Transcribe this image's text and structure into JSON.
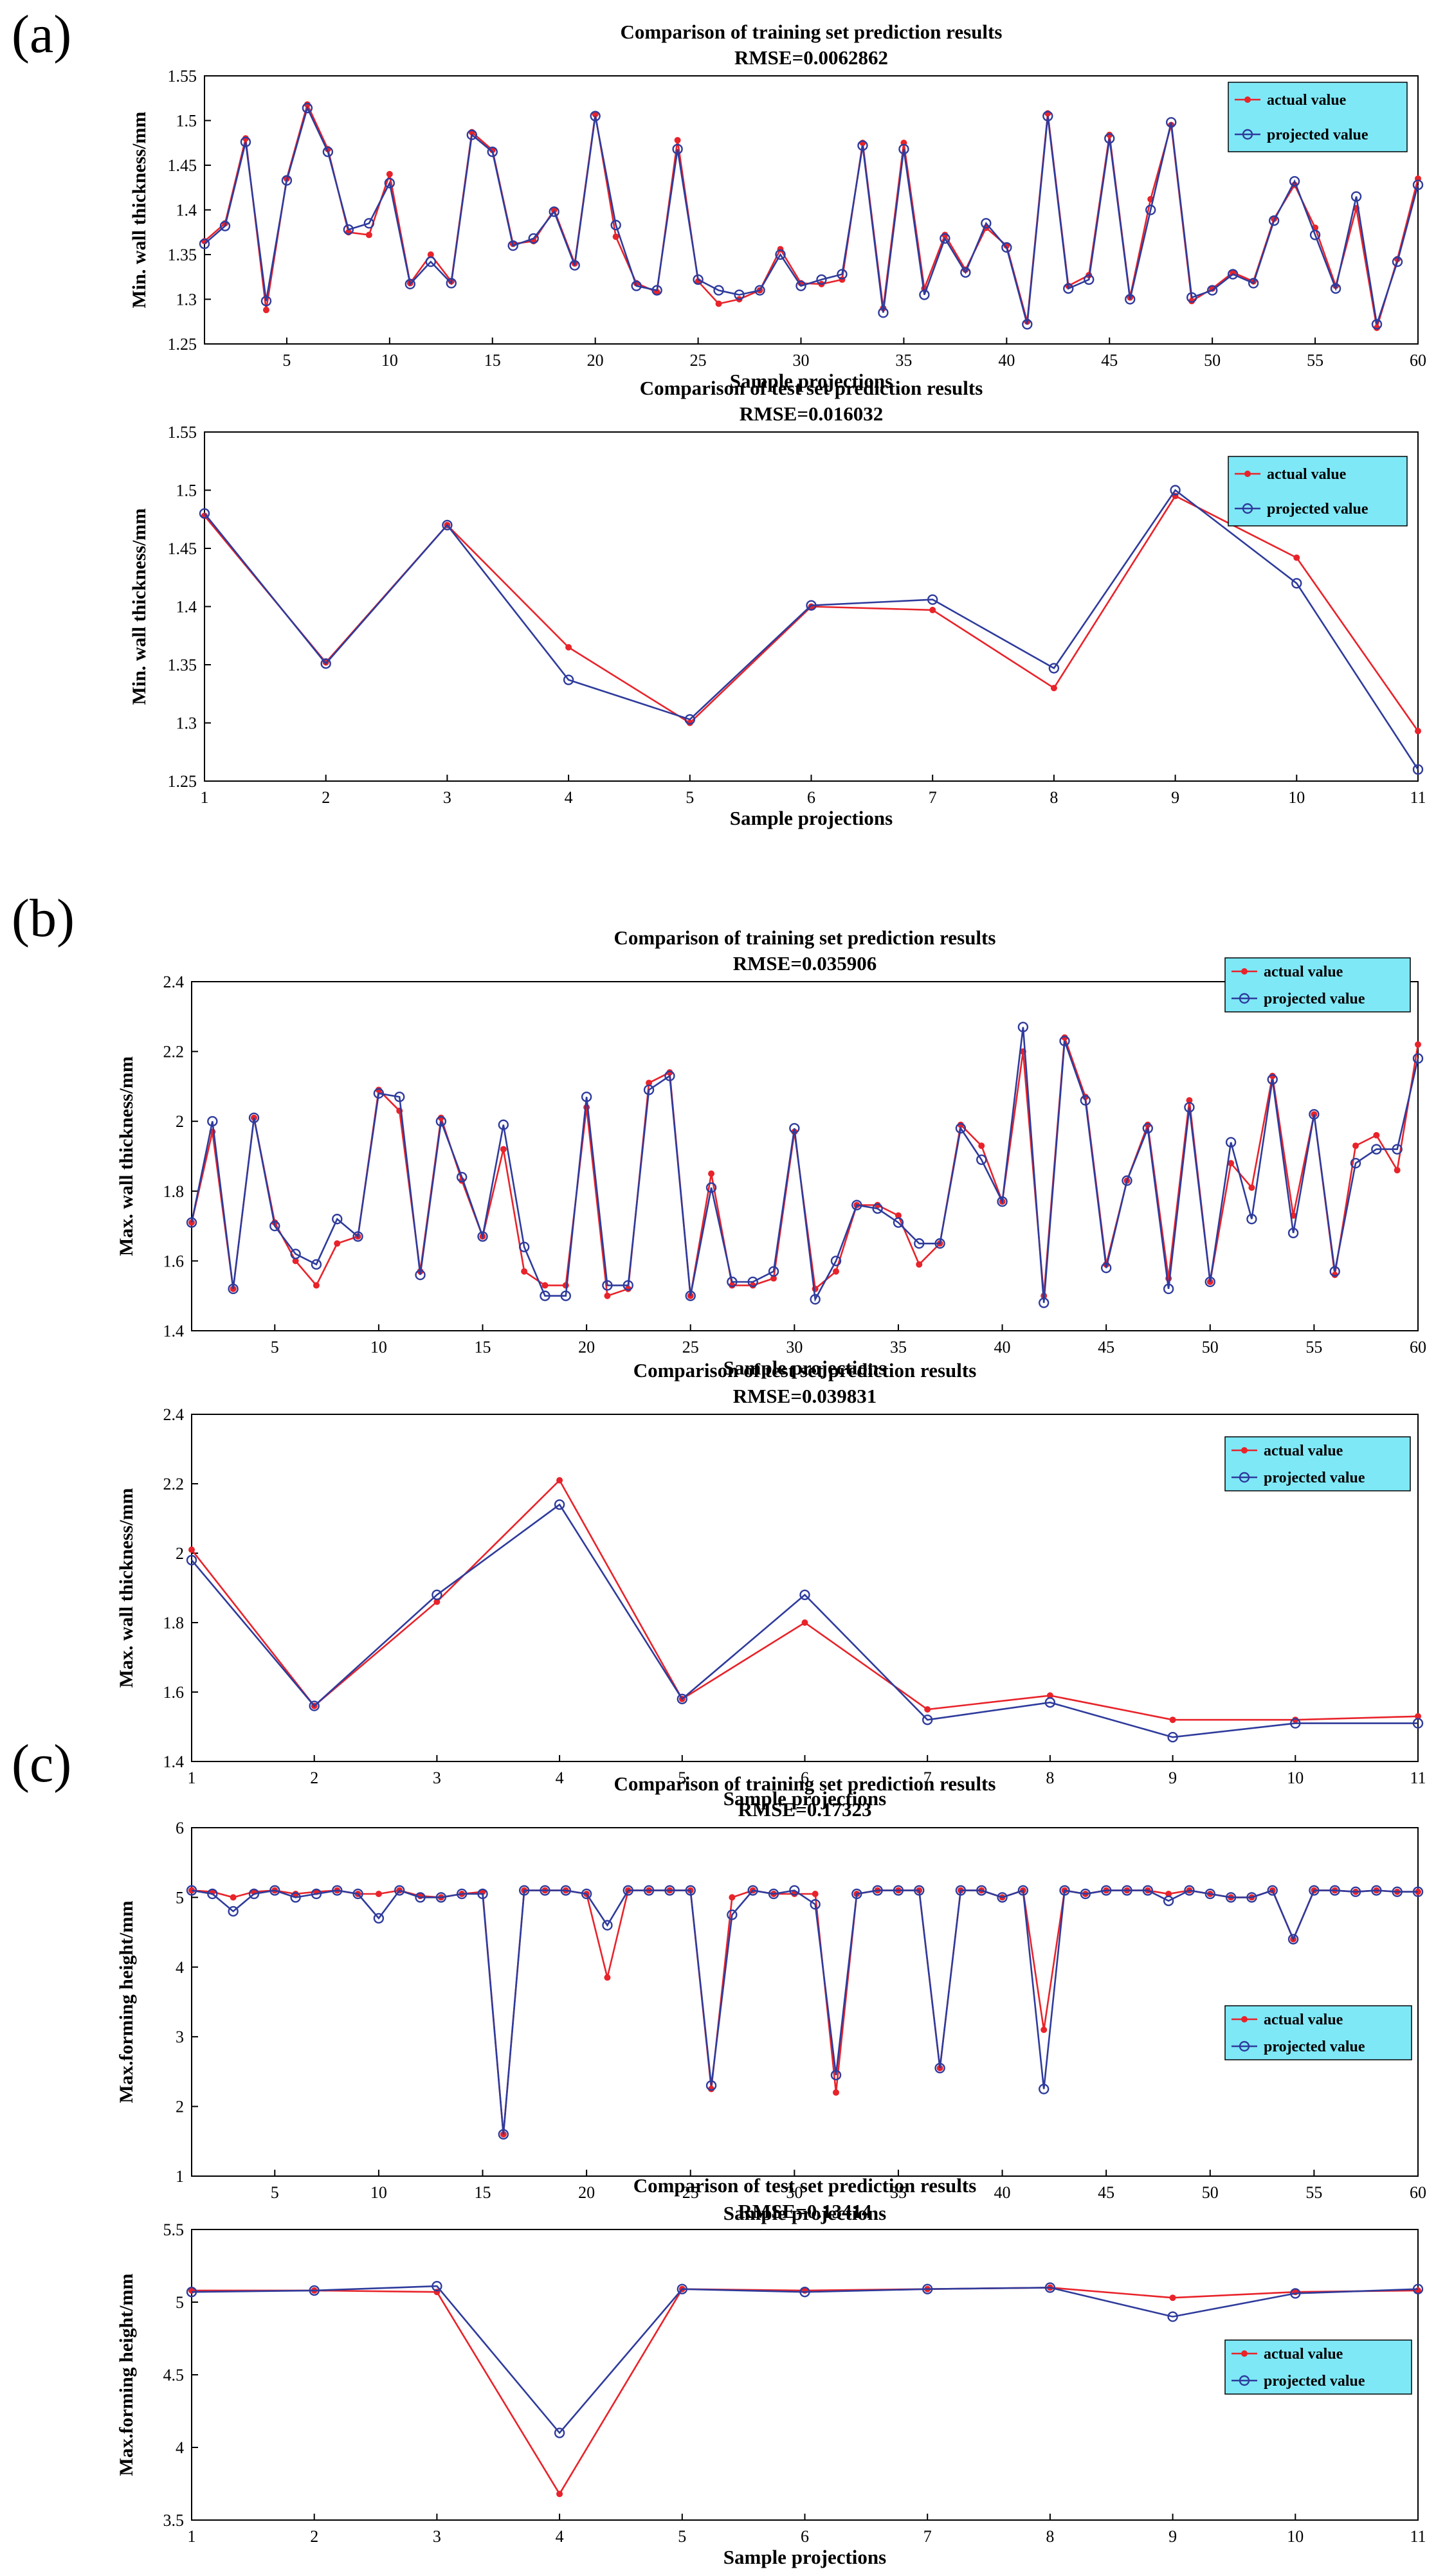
{
  "panel_labels": [
    "(a)",
    "(b)",
    "(c)"
  ],
  "colors": {
    "actual": "#e8232a",
    "projected": "#2e3b9c",
    "legend_bg": "#7ee8f7",
    "axis": "#000000"
  },
  "chart_data": [
    {
      "type": "line",
      "title": "Comparison of training set prediction results",
      "subtitle": "RMSE=0.0062862",
      "xlabel": "Sample projections",
      "ylabel": "Min. wall thickness/mm",
      "xlim": [
        1,
        60
      ],
      "ylim": [
        1.25,
        1.55
      ],
      "xticks": [
        5,
        10,
        15,
        20,
        25,
        30,
        35,
        40,
        45,
        50,
        55,
        60
      ],
      "yticks": [
        1.25,
        1.3,
        1.35,
        1.4,
        1.45,
        1.5,
        1.55
      ],
      "ytick_labels": [
        "1.25",
        "1.3",
        "1.35",
        "1.4",
        "1.45",
        "1.5",
        "1.55"
      ],
      "legend": [
        "actual value",
        "projected value"
      ],
      "legend_position": "top-right",
      "x": [
        1,
        2,
        3,
        4,
        5,
        6,
        7,
        8,
        9,
        10,
        11,
        12,
        13,
        14,
        15,
        16,
        17,
        18,
        19,
        20,
        21,
        22,
        23,
        24,
        25,
        26,
        27,
        28,
        29,
        30,
        31,
        32,
        33,
        34,
        35,
        36,
        37,
        38,
        39,
        40,
        41,
        42,
        43,
        44,
        45,
        46,
        47,
        48,
        49,
        50,
        51,
        52,
        53,
        54,
        55,
        56,
        57,
        58,
        59,
        60
      ],
      "series": [
        {
          "name": "actual value",
          "values": [
            1.365,
            1.385,
            1.48,
            1.288,
            1.435,
            1.518,
            1.468,
            1.375,
            1.372,
            1.44,
            1.318,
            1.35,
            1.32,
            1.487,
            1.467,
            1.362,
            1.365,
            1.4,
            1.34,
            1.507,
            1.37,
            1.318,
            1.308,
            1.478,
            1.32,
            1.295,
            1.3,
            1.31,
            1.356,
            1.318,
            1.317,
            1.322,
            1.475,
            1.29,
            1.475,
            1.312,
            1.372,
            1.333,
            1.38,
            1.36,
            1.275,
            1.508,
            1.315,
            1.327,
            1.484,
            1.302,
            1.412,
            1.495,
            1.298,
            1.312,
            1.33,
            1.32,
            1.39,
            1.428,
            1.38,
            1.315,
            1.402,
            1.268,
            1.345,
            1.435
          ]
        },
        {
          "name": "projected value",
          "values": [
            1.362,
            1.382,
            1.476,
            1.298,
            1.433,
            1.514,
            1.465,
            1.378,
            1.385,
            1.43,
            1.317,
            1.342,
            1.318,
            1.484,
            1.465,
            1.36,
            1.368,
            1.398,
            1.338,
            1.505,
            1.383,
            1.315,
            1.31,
            1.468,
            1.322,
            1.31,
            1.305,
            1.31,
            1.35,
            1.315,
            1.322,
            1.328,
            1.472,
            1.285,
            1.468,
            1.305,
            1.368,
            1.33,
            1.385,
            1.358,
            1.272,
            1.505,
            1.312,
            1.322,
            1.48,
            1.3,
            1.4,
            1.498,
            1.302,
            1.31,
            1.328,
            1.318,
            1.388,
            1.432,
            1.372,
            1.312,
            1.415,
            1.272,
            1.342,
            1.428
          ]
        }
      ]
    },
    {
      "type": "line",
      "title": "Comparison of test set prediction results",
      "subtitle": "RMSE=0.016032",
      "xlabel": "Sample projections",
      "ylabel": "Min. wall thickness/mm",
      "xlim": [
        1,
        11
      ],
      "ylim": [
        1.25,
        1.55
      ],
      "xticks": [
        1,
        2,
        3,
        4,
        5,
        6,
        7,
        8,
        9,
        10,
        11
      ],
      "yticks": [
        1.25,
        1.3,
        1.35,
        1.4,
        1.45,
        1.5,
        1.55
      ],
      "ytick_labels": [
        "1.25",
        "1.3",
        "1.35",
        "1.4",
        "1.45",
        "1.5",
        "1.55"
      ],
      "legend": [
        "actual value",
        "projected value"
      ],
      "legend_position": "top-right",
      "x": [
        1,
        2,
        3,
        4,
        5,
        6,
        7,
        8,
        9,
        10,
        11
      ],
      "series": [
        {
          "name": "actual value",
          "values": [
            1.478,
            1.352,
            1.47,
            1.365,
            1.3,
            1.4,
            1.397,
            1.33,
            1.495,
            1.442,
            1.293
          ]
        },
        {
          "name": "projected value",
          "values": [
            1.48,
            1.351,
            1.47,
            1.337,
            1.303,
            1.401,
            1.406,
            1.347,
            1.5,
            1.42,
            1.26
          ]
        }
      ]
    },
    {
      "type": "line",
      "title": "Comparison of training set prediction results",
      "subtitle": "RMSE=0.035906",
      "xlabel": "Sample projections",
      "ylabel": "Max. wall thickness/mm",
      "xlim": [
        1,
        60
      ],
      "ylim": [
        1.4,
        2.4
      ],
      "xticks": [
        5,
        10,
        15,
        20,
        25,
        30,
        35,
        40,
        45,
        50,
        55,
        60
      ],
      "yticks": [
        1.4,
        1.6,
        1.8,
        2.0,
        2.2,
        2.4
      ],
      "ytick_labels": [
        "1.4",
        "1.6",
        "1.8",
        "2",
        "2.2",
        "2.4"
      ],
      "legend": [
        "actual value",
        "projected value"
      ],
      "legend_position": "top-right",
      "x": [
        1,
        2,
        3,
        4,
        5,
        6,
        7,
        8,
        9,
        10,
        11,
        12,
        13,
        14,
        15,
        16,
        17,
        18,
        19,
        20,
        21,
        22,
        23,
        24,
        25,
        26,
        27,
        28,
        29,
        30,
        31,
        32,
        33,
        34,
        35,
        36,
        37,
        38,
        39,
        40,
        41,
        42,
        43,
        44,
        45,
        46,
        47,
        48,
        49,
        50,
        51,
        52,
        53,
        54,
        55,
        56,
        57,
        58,
        59,
        60
      ],
      "series": [
        {
          "name": "actual value",
          "values": [
            1.71,
            1.97,
            1.52,
            2.01,
            1.71,
            1.6,
            1.53,
            1.65,
            1.67,
            2.09,
            2.03,
            1.57,
            2.01,
            1.83,
            1.67,
            1.92,
            1.57,
            1.53,
            1.53,
            2.04,
            1.5,
            1.52,
            2.11,
            2.14,
            1.5,
            1.85,
            1.53,
            1.53,
            1.55,
            1.97,
            1.52,
            1.57,
            1.76,
            1.76,
            1.73,
            1.59,
            1.65,
            1.99,
            1.93,
            1.77,
            2.2,
            1.5,
            2.24,
            2.07,
            1.59,
            1.83,
            1.99,
            1.55,
            2.06,
            1.54,
            1.88,
            1.81,
            2.13,
            1.73,
            2.02,
            1.56,
            1.93,
            1.96,
            1.86,
            2.22
          ]
        },
        {
          "name": "projected value",
          "values": [
            1.71,
            2.0,
            1.52,
            2.01,
            1.7,
            1.62,
            1.59,
            1.72,
            1.67,
            2.08,
            2.07,
            1.56,
            2.0,
            1.84,
            1.67,
            1.99,
            1.64,
            1.5,
            1.5,
            2.07,
            1.53,
            1.53,
            2.09,
            2.13,
            1.5,
            1.81,
            1.54,
            1.54,
            1.57,
            1.98,
            1.49,
            1.6,
            1.76,
            1.75,
            1.71,
            1.65,
            1.65,
            1.98,
            1.89,
            1.77,
            2.27,
            1.48,
            2.23,
            2.06,
            1.58,
            1.83,
            1.98,
            1.52,
            2.04,
            1.54,
            1.94,
            1.72,
            2.12,
            1.68,
            2.02,
            1.57,
            1.88,
            1.92,
            1.92,
            2.18
          ]
        }
      ]
    },
    {
      "type": "line",
      "title": "Comparison of test set prediction results",
      "subtitle": "RMSE=0.039831",
      "xlabel": "Sample projections",
      "ylabel": "Max. wall thickness/mm",
      "xlim": [
        1,
        11
      ],
      "ylim": [
        1.4,
        2.4
      ],
      "xticks": [
        1,
        2,
        3,
        4,
        5,
        6,
        7,
        8,
        9,
        10,
        11
      ],
      "yticks": [
        1.4,
        1.6,
        1.8,
        2.0,
        2.2,
        2.4
      ],
      "ytick_labels": [
        "1.4",
        "1.6",
        "1.8",
        "2",
        "2.2",
        "2.4"
      ],
      "legend": [
        "actual value",
        "projected value"
      ],
      "legend_position": "top-right",
      "x": [
        1,
        2,
        3,
        4,
        5,
        6,
        7,
        8,
        9,
        10,
        11
      ],
      "series": [
        {
          "name": "actual value",
          "values": [
            2.01,
            1.56,
            1.86,
            2.21,
            1.58,
            1.8,
            1.55,
            1.59,
            1.52,
            1.52,
            1.53
          ]
        },
        {
          "name": "projected value",
          "values": [
            1.98,
            1.56,
            1.88,
            2.14,
            1.58,
            1.88,
            1.52,
            1.57,
            1.47,
            1.51,
            1.51
          ]
        }
      ]
    },
    {
      "type": "line",
      "title": "Comparison of training set prediction results",
      "subtitle": "RMSE=0.17323",
      "xlabel": "Sample projections",
      "ylabel": "Max.forming height/mm",
      "xlim": [
        1,
        60
      ],
      "ylim": [
        1,
        6
      ],
      "xticks": [
        5,
        10,
        15,
        20,
        25,
        30,
        35,
        40,
        45,
        50,
        55,
        60
      ],
      "yticks": [
        1,
        2,
        3,
        4,
        5,
        6
      ],
      "ytick_labels": [
        "1",
        "2",
        "3",
        "4",
        "5",
        "6"
      ],
      "legend": [
        "actual value",
        "projected value"
      ],
      "legend_position": "center-right",
      "x": [
        1,
        2,
        3,
        4,
        5,
        6,
        7,
        8,
        9,
        10,
        11,
        12,
        13,
        14,
        15,
        16,
        17,
        18,
        19,
        20,
        21,
        22,
        23,
        24,
        25,
        26,
        27,
        28,
        29,
        30,
        31,
        32,
        33,
        34,
        35,
        36,
        37,
        38,
        39,
        40,
        41,
        42,
        43,
        44,
        45,
        46,
        47,
        48,
        49,
        50,
        51,
        52,
        53,
        54,
        55,
        56,
        57,
        58,
        59,
        60
      ],
      "series": [
        {
          "name": "actual value",
          "values": [
            5.1,
            5.08,
            5.0,
            5.08,
            5.1,
            5.05,
            5.08,
            5.1,
            5.05,
            5.05,
            5.1,
            5.02,
            5.0,
            5.05,
            5.08,
            1.6,
            5.1,
            5.1,
            5.1,
            5.05,
            3.85,
            5.1,
            5.1,
            5.1,
            5.1,
            2.25,
            5.0,
            5.1,
            5.05,
            5.05,
            5.05,
            2.2,
            5.05,
            5.1,
            5.1,
            5.1,
            2.55,
            5.1,
            5.1,
            5.0,
            5.1,
            3.1,
            5.1,
            5.05,
            5.1,
            5.1,
            5.1,
            5.05,
            5.1,
            5.05,
            5.0,
            5.0,
            5.1,
            4.4,
            5.1,
            5.1,
            5.08,
            5.1,
            5.08,
            5.08
          ]
        },
        {
          "name": "projected value",
          "values": [
            5.1,
            5.05,
            4.8,
            5.05,
            5.1,
            5.0,
            5.05,
            5.1,
            5.05,
            4.7,
            5.1,
            5.0,
            5.0,
            5.05,
            5.05,
            1.6,
            5.1,
            5.1,
            5.1,
            5.05,
            4.6,
            5.1,
            5.1,
            5.1,
            5.1,
            2.3,
            4.75,
            5.1,
            5.05,
            5.1,
            4.9,
            2.45,
            5.05,
            5.1,
            5.1,
            5.1,
            2.55,
            5.1,
            5.1,
            5.0,
            5.1,
            2.25,
            5.1,
            5.05,
            5.1,
            5.1,
            5.1,
            4.95,
            5.1,
            5.05,
            5.0,
            5.0,
            5.1,
            4.4,
            5.1,
            5.1,
            5.08,
            5.1,
            5.08,
            5.08
          ]
        }
      ]
    },
    {
      "type": "line",
      "title": "Comparison of test set prediction results",
      "subtitle": "RMSE=0.13414",
      "xlabel": "Sample projections",
      "ylabel": "Max.forming height/mm",
      "xlim": [
        1,
        11
      ],
      "ylim": [
        3.5,
        5.5
      ],
      "xticks": [
        1,
        2,
        3,
        4,
        5,
        6,
        7,
        8,
        9,
        10,
        11
      ],
      "yticks": [
        3.5,
        4,
        4.5,
        5,
        5.5
      ],
      "ytick_labels": [
        "3.5",
        "4",
        "4.5",
        "5",
        "5.5"
      ],
      "legend": [
        "actual value",
        "projected value"
      ],
      "legend_position": "center-right",
      "x": [
        1,
        2,
        3,
        4,
        5,
        6,
        7,
        8,
        9,
        10,
        11
      ],
      "series": [
        {
          "name": "actual value",
          "values": [
            5.08,
            5.08,
            5.07,
            3.68,
            5.09,
            5.08,
            5.09,
            5.1,
            5.03,
            5.07,
            5.08
          ]
        },
        {
          "name": "projected value",
          "values": [
            5.07,
            5.08,
            5.11,
            4.1,
            5.09,
            5.07,
            5.09,
            5.1,
            4.9,
            5.06,
            5.09
          ]
        }
      ]
    }
  ]
}
